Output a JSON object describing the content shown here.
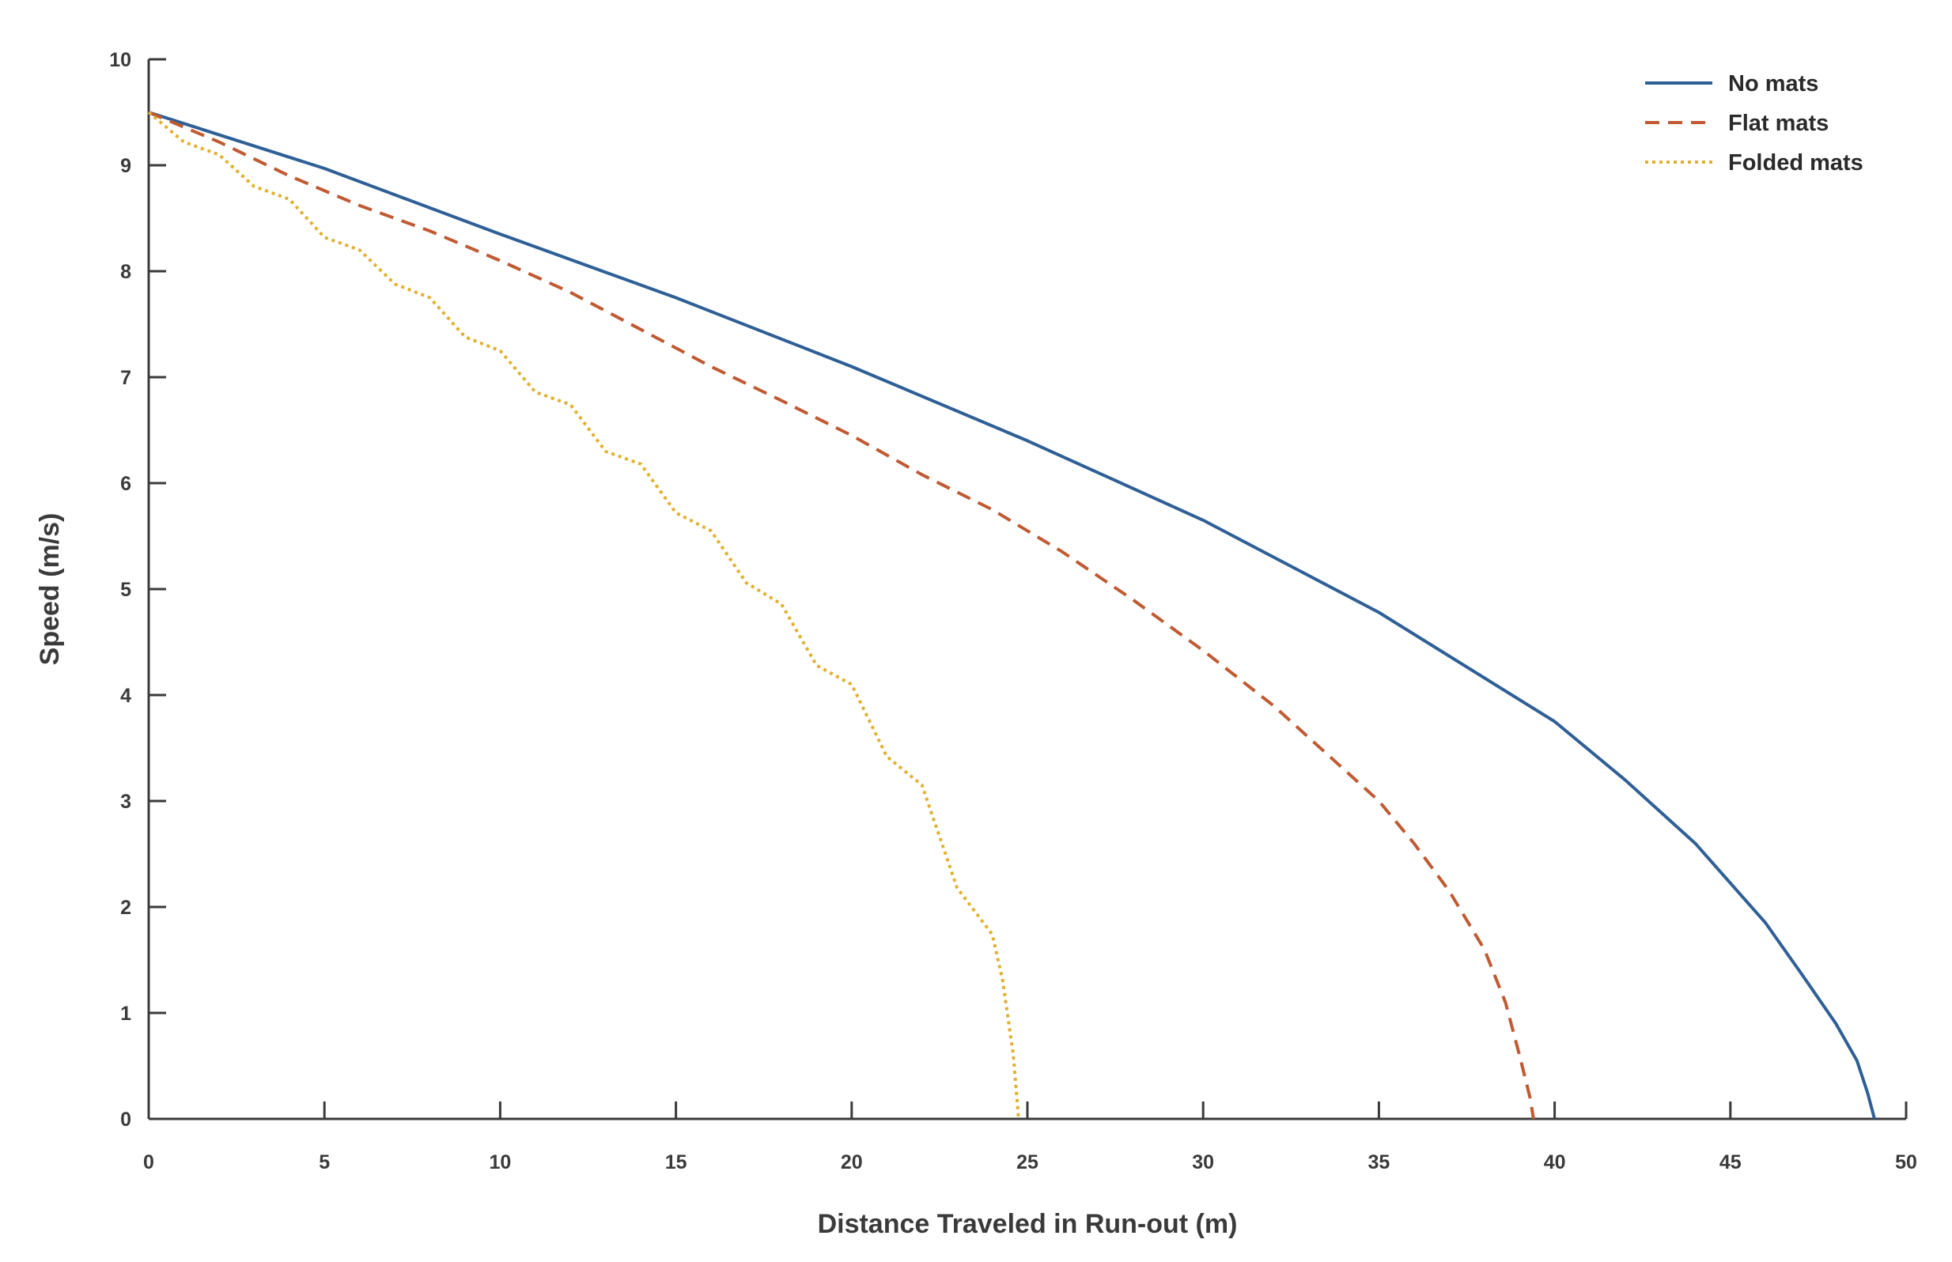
{
  "chart_data": {
    "type": "line",
    "title": "",
    "xlabel": "Distance Traveled in Run-out (m)",
    "ylabel": "Speed (m/s)",
    "xlim": [
      0,
      50
    ],
    "ylim": [
      0,
      10
    ],
    "xticks": [
      0,
      5,
      10,
      15,
      20,
      25,
      30,
      35,
      40,
      45,
      50
    ],
    "yticks": [
      0,
      1,
      2,
      3,
      4,
      5,
      6,
      7,
      8,
      9,
      10
    ],
    "grid": false,
    "legend_position": "top-right",
    "series": [
      {
        "name": "No mats",
        "color": "#2e5f96",
        "style": "solid",
        "points": [
          [
            0,
            9.5
          ],
          [
            5,
            8.97
          ],
          [
            10,
            8.35
          ],
          [
            15,
            7.75
          ],
          [
            20,
            7.1
          ],
          [
            25,
            6.4
          ],
          [
            30,
            5.65
          ],
          [
            35,
            4.78
          ],
          [
            40,
            3.75
          ],
          [
            42,
            3.2
          ],
          [
            44,
            2.6
          ],
          [
            46,
            1.85
          ],
          [
            47,
            1.38
          ],
          [
            48,
            0.9
          ],
          [
            48.6,
            0.55
          ],
          [
            48.9,
            0.25
          ],
          [
            49.1,
            0
          ]
        ]
      },
      {
        "name": "Flat mats",
        "color": "#c05a32",
        "style": "dashed",
        "points": [
          [
            0,
            9.5
          ],
          [
            2,
            9.22
          ],
          [
            4,
            8.9
          ],
          [
            6,
            8.62
          ],
          [
            8,
            8.38
          ],
          [
            10,
            8.1
          ],
          [
            12,
            7.8
          ],
          [
            14,
            7.45
          ],
          [
            16,
            7.1
          ],
          [
            18,
            6.78
          ],
          [
            20,
            6.45
          ],
          [
            22,
            6.08
          ],
          [
            24,
            5.75
          ],
          [
            26,
            5.35
          ],
          [
            28,
            4.9
          ],
          [
            30,
            4.42
          ],
          [
            32,
            3.9
          ],
          [
            34,
            3.3
          ],
          [
            35,
            3.0
          ],
          [
            36,
            2.6
          ],
          [
            37,
            2.15
          ],
          [
            38,
            1.6
          ],
          [
            38.6,
            1.1
          ],
          [
            39.0,
            0.6
          ],
          [
            39.3,
            0.2
          ],
          [
            39.4,
            0
          ]
        ]
      },
      {
        "name": "Folded mats",
        "color": "#e0b030",
        "style": "dotted",
        "points": [
          [
            0,
            9.5
          ],
          [
            1,
            9.22
          ],
          [
            2,
            9.1
          ],
          [
            3,
            8.8
          ],
          [
            4,
            8.68
          ],
          [
            5,
            8.32
          ],
          [
            6,
            8.2
          ],
          [
            7,
            7.88
          ],
          [
            8,
            7.75
          ],
          [
            9,
            7.38
          ],
          [
            10,
            7.25
          ],
          [
            11,
            6.86
          ],
          [
            12,
            6.74
          ],
          [
            13,
            6.3
          ],
          [
            14,
            6.18
          ],
          [
            15,
            5.72
          ],
          [
            16,
            5.55
          ],
          [
            17,
            5.06
          ],
          [
            18,
            4.86
          ],
          [
            19,
            4.28
          ],
          [
            20,
            4.1
          ],
          [
            21,
            3.42
          ],
          [
            22,
            3.15
          ],
          [
            23,
            2.18
          ],
          [
            24,
            1.74
          ],
          [
            24.3,
            1.3
          ],
          [
            24.6,
            0.6
          ],
          [
            24.75,
            0
          ]
        ]
      }
    ]
  }
}
